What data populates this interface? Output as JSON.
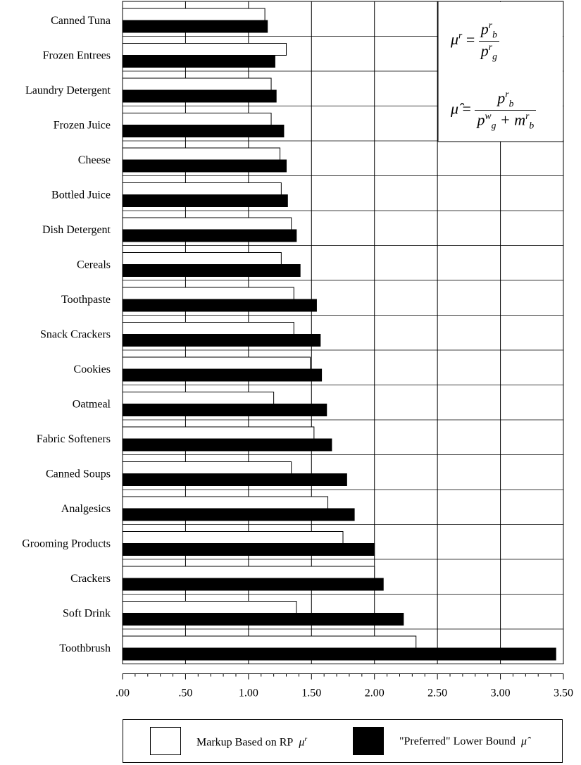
{
  "chart_data": {
    "type": "bar",
    "orientation": "horizontal",
    "categories": [
      "Canned Tuna",
      "Frozen Entrees",
      "Laundry Detergent",
      "Frozen Juice",
      "Cheese",
      "Bottled Juice",
      "Dish Detergent",
      "Cereals",
      "Toothpaste",
      "Snack Crackers",
      "Cookies",
      "Oatmeal",
      "Fabric Softeners",
      "Canned Soups",
      "Analgesics",
      "Grooming Products",
      "Crackers",
      "Soft Drink",
      "Toothbrush"
    ],
    "series": [
      {
        "name": "Markup Based on RP",
        "fill": "#ffffff",
        "values": [
          1.13,
          1.3,
          1.18,
          1.18,
          1.25,
          1.26,
          1.34,
          1.26,
          1.36,
          1.36,
          1.49,
          1.2,
          1.52,
          1.34,
          1.63,
          1.75,
          2.0,
          1.38,
          2.33
        ]
      },
      {
        "name": "\"Preferred\" Lower Bound",
        "fill": "#000000",
        "values": [
          1.15,
          1.21,
          1.22,
          1.28,
          1.3,
          1.31,
          1.38,
          1.41,
          1.54,
          1.57,
          1.58,
          1.62,
          1.66,
          1.78,
          1.84,
          2.0,
          2.07,
          2.23,
          3.44
        ]
      }
    ],
    "xticks": [
      ".00",
      ".50",
      "1.00",
      "1.50",
      "2.00",
      "2.50",
      "3.00",
      "3.50"
    ],
    "xlim": [
      0,
      3.5
    ],
    "grid": true
  },
  "legend": {
    "markup_label": "Markup Based on RP",
    "markup_symbol": "μ",
    "markup_symbol_sup": "r",
    "preferred_label": "\"Preferred\" Lower Bound",
    "preferred_symbol": "μ̂"
  },
  "formulas": {
    "f1_lhs": "μ",
    "f1_lhs_sup": "r",
    "f1_num": "p",
    "f1_num_sub": "b",
    "f1_num_sup": "r",
    "f1_den": "p",
    "f1_den_sub": "g",
    "f1_den_sup": "r",
    "f2_lhs": "μ̂",
    "f2_num": "p",
    "f2_num_sub": "b",
    "f2_num_sup": "r",
    "f2_den_a": "p",
    "f2_den_a_sub": "g",
    "f2_den_a_sup": "w",
    "f2_den_plus": "+ m",
    "f2_den_b_sub": "b",
    "f2_den_b_sup": "r"
  }
}
